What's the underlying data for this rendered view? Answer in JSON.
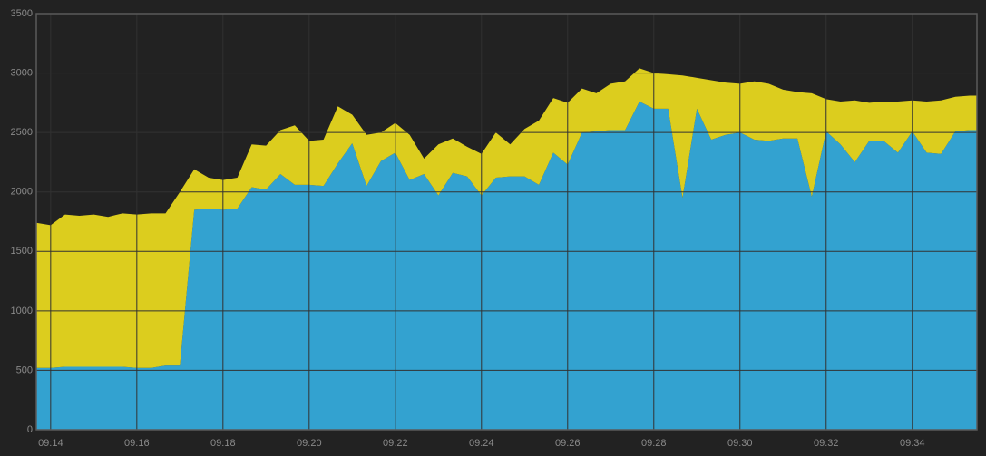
{
  "chart_data": {
    "type": "stacked_area",
    "x": [
      820,
      840,
      860,
      880,
      900,
      920,
      940,
      960,
      980,
      1000,
      1020,
      1040,
      1060,
      1080,
      1100,
      1120,
      1140,
      1160,
      1180,
      1200,
      1220,
      1240,
      1260,
      1280,
      1300,
      1320,
      1340,
      1360,
      1380,
      1400,
      1420,
      1440,
      1460,
      1480,
      1500,
      1520,
      1540,
      1560,
      1580,
      1600,
      1620,
      1640,
      1660,
      1680,
      1700,
      1720,
      1740,
      1760,
      1780,
      1800,
      1820,
      1840,
      1860,
      1880,
      1900,
      1920,
      1940,
      1960,
      1980,
      2000,
      2020,
      2040,
      2060,
      2080,
      2100,
      2120,
      2130
    ],
    "series": [
      {
        "color": "#33a2d0",
        "values": [
          520,
          520,
          530,
          530,
          530,
          530,
          530,
          520,
          520,
          540,
          540,
          1850,
          1860,
          1850,
          1860,
          2040,
          2020,
          2150,
          2060,
          2060,
          2050,
          2240,
          2410,
          2050,
          2260,
          2330,
          2100,
          2150,
          1970,
          2160,
          2130,
          1970,
          2120,
          2130,
          2130,
          2060,
          2330,
          2230,
          2500,
          2510,
          2520,
          2520,
          2760,
          2700,
          2700,
          1950,
          2700,
          2440,
          2480,
          2500,
          2440,
          2430,
          2450,
          2450,
          1960,
          2510,
          2400,
          2250,
          2430,
          2430,
          2330,
          2510,
          2330,
          2320,
          2510,
          2520,
          2520
        ]
      },
      {
        "color": "#dccd1e",
        "values": [
          1220,
          1200,
          1280,
          1270,
          1280,
          1260,
          1290,
          1290,
          1300,
          1280,
          1460,
          340,
          260,
          250,
          260,
          360,
          370,
          370,
          500,
          370,
          390,
          480,
          240,
          430,
          240,
          250,
          380,
          130,
          430,
          290,
          250,
          350,
          380,
          270,
          400,
          540,
          460,
          520,
          370,
          320,
          390,
          410,
          280,
          300,
          290,
          1030,
          260,
          500,
          440,
          410,
          490,
          480,
          410,
          390,
          870,
          270,
          360,
          520,
          320,
          330,
          430,
          260,
          430,
          450,
          290,
          290,
          290
        ]
      }
    ],
    "xlim": [
      820,
      2130
    ],
    "xticks": [
      {
        "value": 840,
        "label": "09:14"
      },
      {
        "value": 960,
        "label": "09:16"
      },
      {
        "value": 1080,
        "label": "09:18"
      },
      {
        "value": 1200,
        "label": "09:20"
      },
      {
        "value": 1320,
        "label": "09:22"
      },
      {
        "value": 1440,
        "label": "09:24"
      },
      {
        "value": 1560,
        "label": "09:26"
      },
      {
        "value": 1680,
        "label": "09:28"
      },
      {
        "value": 1800,
        "label": "09:30"
      },
      {
        "value": 1920,
        "label": "09:32"
      },
      {
        "value": 2040,
        "label": "09:34"
      }
    ],
    "ylim": [
      0,
      3500
    ],
    "yticks": [
      0,
      500,
      1000,
      1500,
      2000,
      2500,
      3000,
      3500
    ],
    "grid": true
  }
}
